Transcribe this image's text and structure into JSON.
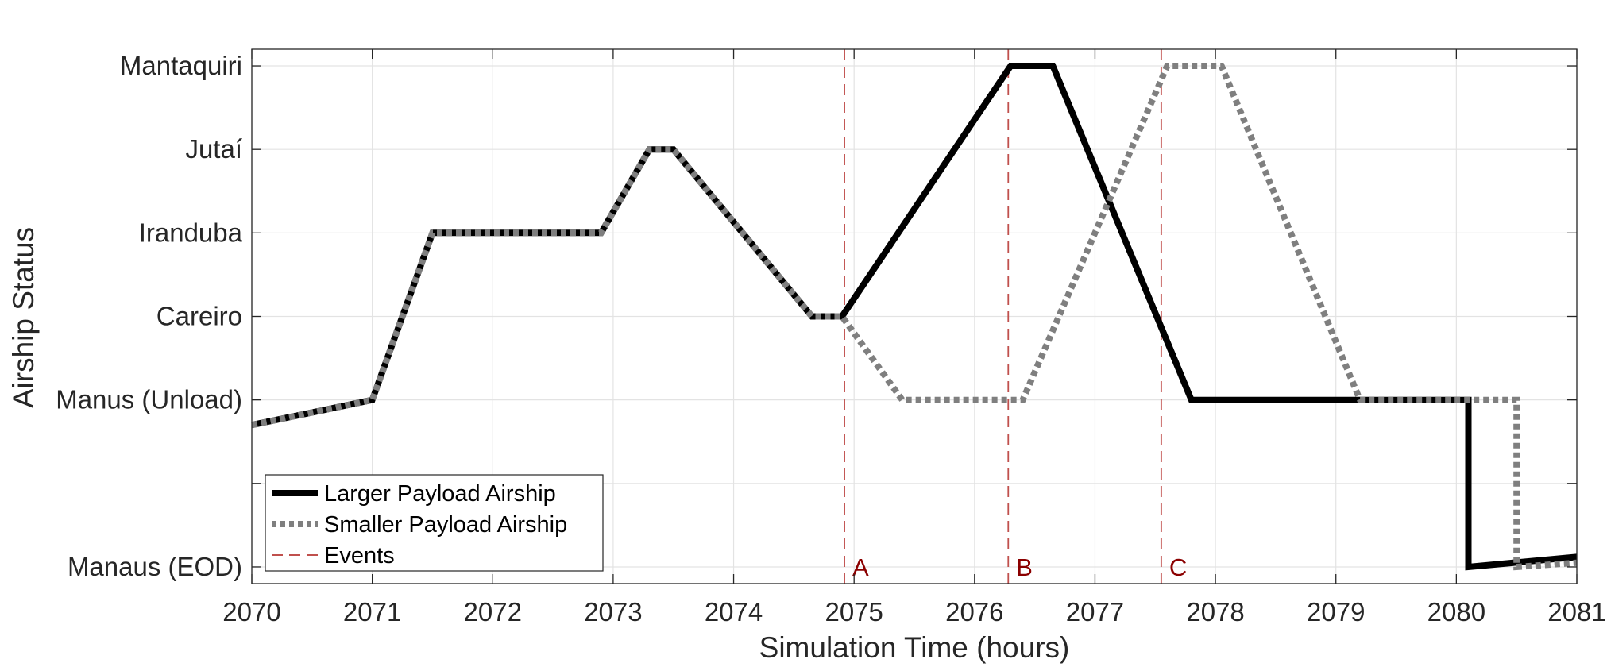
{
  "chart_data": {
    "type": "line",
    "xlabel": "Simulation Time (hours)",
    "ylabel": "Airship Status",
    "xlim": [
      2070,
      2081
    ],
    "ylim": [
      -0.2,
      6.2
    ],
    "grid": true,
    "x_ticks": [
      {
        "value": 2070,
        "label": "2070"
      },
      {
        "value": 2071,
        "label": "2071"
      },
      {
        "value": 2072,
        "label": "2072"
      },
      {
        "value": 2073,
        "label": "2073"
      },
      {
        "value": 2074,
        "label": "2074"
      },
      {
        "value": 2075,
        "label": "2075"
      },
      {
        "value": 2076,
        "label": "2076"
      },
      {
        "value": 2077,
        "label": "2077"
      },
      {
        "value": 2078,
        "label": "2078"
      },
      {
        "value": 2079,
        "label": "2079"
      },
      {
        "value": 2080,
        "label": "2080"
      },
      {
        "value": 2081,
        "label": "2081"
      }
    ],
    "y_ticks": [
      {
        "value": 0,
        "label": "Manaus (EOD)"
      },
      {
        "value": 1,
        "label": ""
      },
      {
        "value": 2,
        "label": "Manus (Unload)"
      },
      {
        "value": 3,
        "label": "Careiro"
      },
      {
        "value": 4,
        "label": "Iranduba"
      },
      {
        "value": 5,
        "label": "Jutaí"
      },
      {
        "value": 6,
        "label": "Mantaquiri"
      }
    ],
    "series": [
      {
        "name": "Larger Payload Airship",
        "color": "#000000",
        "style": "solid",
        "points": [
          [
            2070.0,
            1.7
          ],
          [
            2071.0,
            2.0
          ],
          [
            2071.5,
            4.0
          ],
          [
            2072.9,
            4.0
          ],
          [
            2073.3,
            5.0
          ],
          [
            2073.5,
            5.0
          ],
          [
            2074.65,
            3.0
          ],
          [
            2074.9,
            3.0
          ],
          [
            2076.3,
            6.0
          ],
          [
            2076.65,
            6.0
          ],
          [
            2077.8,
            2.0
          ],
          [
            2080.1,
            2.0
          ],
          [
            2080.1,
            0.0
          ],
          [
            2081.0,
            0.12
          ]
        ]
      },
      {
        "name": "Smaller Payload Airship",
        "color": "#7f7f7f",
        "style": "dotted",
        "points": [
          [
            2070.0,
            1.7
          ],
          [
            2071.0,
            2.0
          ],
          [
            2071.5,
            4.0
          ],
          [
            2072.9,
            4.0
          ],
          [
            2073.3,
            5.0
          ],
          [
            2073.5,
            5.0
          ],
          [
            2074.65,
            3.0
          ],
          [
            2074.9,
            3.0
          ],
          [
            2075.4,
            2.0
          ],
          [
            2076.4,
            2.0
          ],
          [
            2077.6,
            6.0
          ],
          [
            2078.05,
            6.0
          ],
          [
            2079.2,
            2.0
          ],
          [
            2080.5,
            2.0
          ],
          [
            2080.5,
            0.0
          ],
          [
            2081.0,
            0.05
          ]
        ]
      }
    ],
    "events": {
      "name": "Events",
      "color": "#c0504d",
      "label_color": "#8b0000",
      "items": [
        {
          "x": 2074.92,
          "label": "A"
        },
        {
          "x": 2076.28,
          "label": "B"
        },
        {
          "x": 2077.55,
          "label": "C"
        }
      ]
    },
    "legend": {
      "position": "bottom-left",
      "entries": [
        "Larger Payload Airship",
        "Smaller Payload Airship",
        "Events"
      ]
    }
  }
}
